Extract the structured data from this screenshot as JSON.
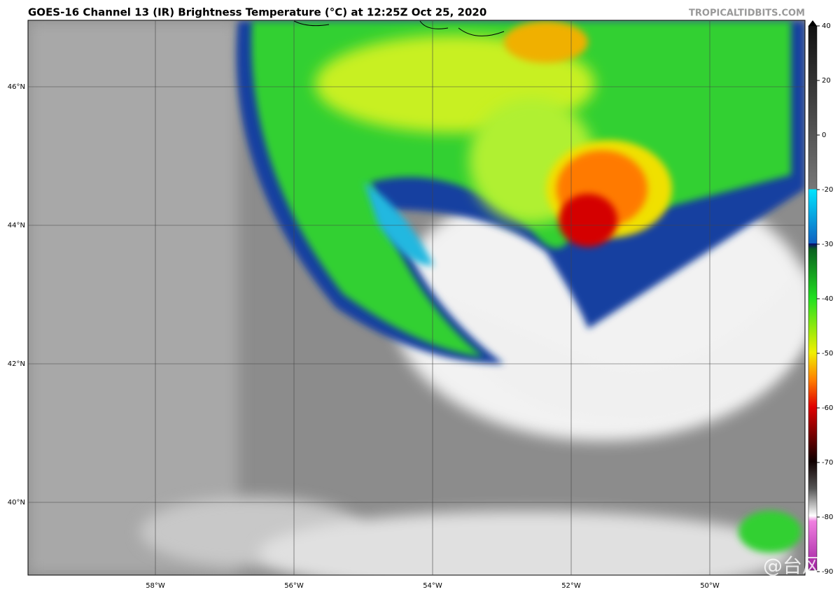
{
  "map": {
    "title": "GOES-16 Channel 13 (IR) Brightness Temperature (°C) at 12:25Z Oct 25, 2020",
    "source": "TROPICALTIDBITS.COM",
    "watermark": "@台风吧",
    "lat_ticks": [
      {
        "value": 46,
        "label": "46°N"
      },
      {
        "value": 44,
        "label": "44°N"
      },
      {
        "value": 42,
        "label": "42°N"
      },
      {
        "value": 40,
        "label": "40°N"
      }
    ],
    "lon_ticks": [
      {
        "value": -58,
        "label": "58°W"
      },
      {
        "value": -56,
        "label": "56°W"
      },
      {
        "value": -54,
        "label": "54°W"
      },
      {
        "value": -52,
        "label": "52°W"
      },
      {
        "value": -50,
        "label": "50°W"
      }
    ],
    "colorbar_ticks": [
      40,
      20,
      0,
      -20,
      -30,
      -40,
      -50,
      -60,
      -70,
      -80,
      -90
    ]
  }
}
